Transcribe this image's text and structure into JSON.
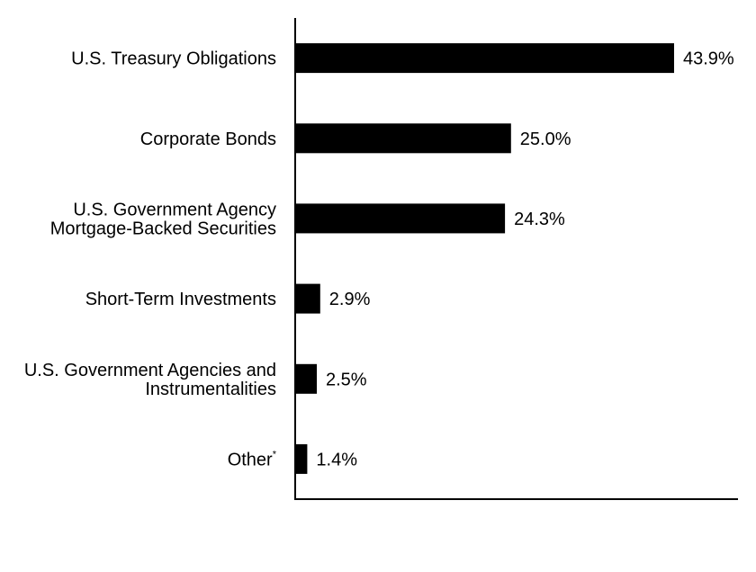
{
  "chart_data": {
    "type": "bar",
    "orientation": "horizontal",
    "categories": [
      {
        "lines": [
          "U.S. Treasury Obligations"
        ],
        "superscript": ""
      },
      {
        "lines": [
          "Corporate Bonds"
        ],
        "superscript": ""
      },
      {
        "lines": [
          "U.S. Government Agency",
          "Mortgage-Backed Securities"
        ],
        "superscript": ""
      },
      {
        "lines": [
          "Short-Term Investments"
        ],
        "superscript": ""
      },
      {
        "lines": [
          "U.S. Government Agencies and",
          "Instrumentalities"
        ],
        "superscript": ""
      },
      {
        "lines": [
          "Other"
        ],
        "superscript": "*"
      }
    ],
    "values": [
      43.9,
      25.0,
      24.3,
      2.9,
      2.5,
      1.4
    ],
    "value_labels": [
      "43.9%",
      "25.0%",
      "24.3%",
      "2.9%",
      "2.5%",
      "1.4%"
    ],
    "title": "",
    "xlabel": "",
    "ylabel": "",
    "xlim": [
      0,
      51.3
    ],
    "grid": false,
    "legend": "none",
    "bar_color": "#000000"
  }
}
